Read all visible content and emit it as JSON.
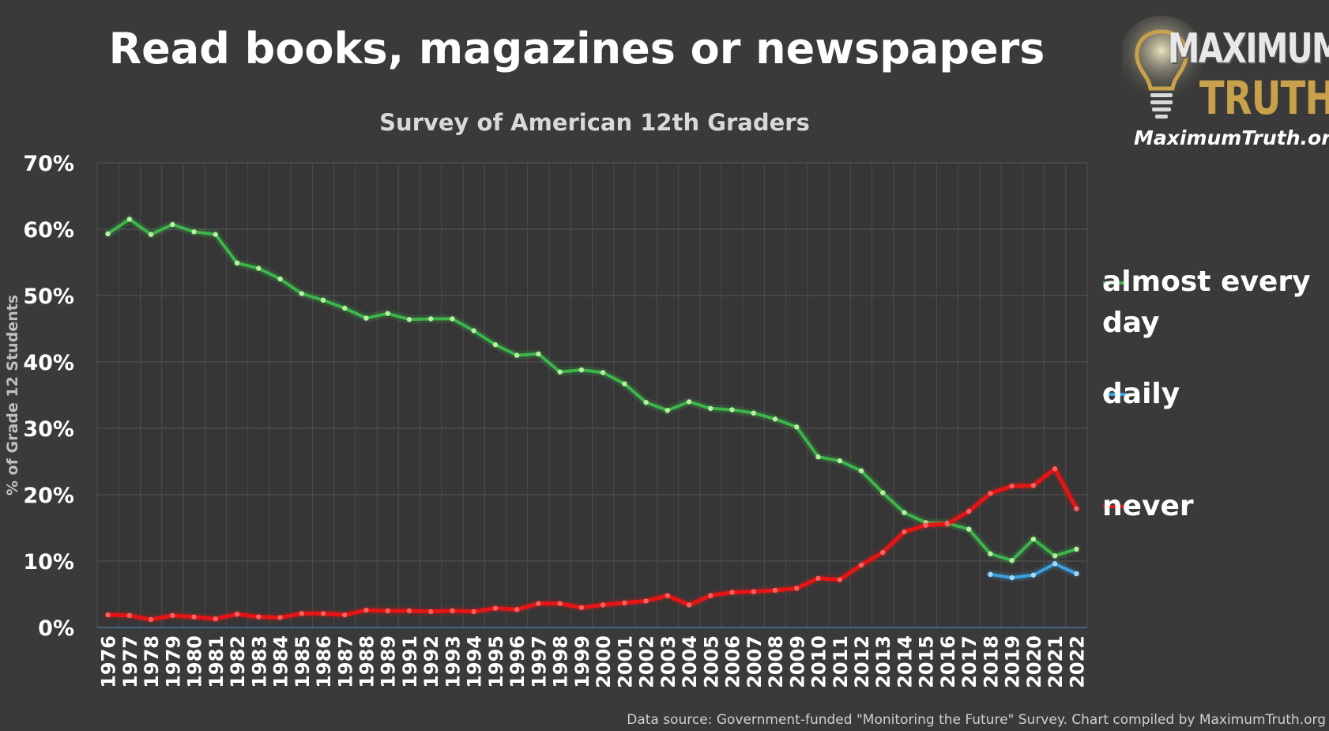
{
  "title": "Read books, magazines or newspapers",
  "subtitle": "Survey of American 12th Graders",
  "logo": {
    "line1": "MAXIMUM",
    "line2": "TRUTH",
    "url": "MaximumTruth.org"
  },
  "source_note": "Data source: Government-funded \"Monitoring the Future\" Survey. Chart compiled by MaximumTruth.org",
  "colors": {
    "background": "#3a3a3a",
    "green": "#3cb54a",
    "blue": "#3aa0e0",
    "red": "#e61414",
    "grid": "#555555"
  },
  "chart_data": {
    "type": "line",
    "title": "Read books, magazines or newspapers",
    "subtitle": "Survey of American 12th Graders",
    "xlabel": "",
    "ylabel": "% of Grade 12 Students",
    "ylim": [
      0,
      70
    ],
    "yticks": [
      "0%",
      "10%",
      "20%",
      "30%",
      "40%",
      "50%",
      "60%",
      "70%"
    ],
    "grid": true,
    "legend_position": "right",
    "categories": [
      "1976",
      "1977",
      "1978",
      "1979",
      "1980",
      "1981",
      "1982",
      "1983",
      "1984",
      "1985",
      "1986",
      "1987",
      "1988",
      "1989",
      "1991",
      "1992",
      "1993",
      "1994",
      "1995",
      "1996",
      "1997",
      "1998",
      "1999",
      "2000",
      "2001",
      "2002",
      "2003",
      "2004",
      "2005",
      "2006",
      "2007",
      "2008",
      "2009",
      "2010",
      "2011",
      "2012",
      "2013",
      "2014",
      "2015",
      "2016",
      "2017",
      "2018",
      "2019",
      "2020",
      "2021",
      "2022"
    ],
    "series": [
      {
        "name": "almost every day",
        "color": "#3cb54a",
        "values": [
          59.3,
          61.5,
          59.2,
          60.7,
          59.6,
          59.2,
          54.9,
          54.1,
          52.5,
          50.3,
          49.3,
          48.1,
          46.6,
          47.3,
          46.4,
          46.5,
          46.5,
          44.7,
          42.6,
          41.0,
          41.2,
          38.5,
          38.8,
          38.4,
          36.7,
          33.9,
          32.7,
          34.0,
          33.0,
          32.8,
          32.3,
          31.4,
          30.2,
          25.7,
          25.1,
          23.6,
          20.3,
          17.3,
          15.8,
          15.7,
          14.8,
          11.1,
          10.1,
          13.3,
          10.8,
          11.8
        ],
        "legend_line1": "almost every",
        "legend_line2": "day"
      },
      {
        "name": "daily",
        "color": "#3aa0e0",
        "values": [
          null,
          null,
          null,
          null,
          null,
          null,
          null,
          null,
          null,
          null,
          null,
          null,
          null,
          null,
          null,
          null,
          null,
          null,
          null,
          null,
          null,
          null,
          null,
          null,
          null,
          null,
          null,
          null,
          null,
          null,
          null,
          null,
          null,
          null,
          null,
          null,
          null,
          null,
          null,
          null,
          null,
          8.0,
          7.5,
          7.9,
          9.6,
          8.1
        ]
      },
      {
        "name": "never",
        "color": "#e61414",
        "values": [
          1.9,
          1.8,
          1.2,
          1.8,
          1.6,
          1.3,
          2.0,
          1.6,
          1.5,
          2.1,
          2.1,
          1.9,
          2.6,
          2.5,
          2.5,
          2.4,
          2.5,
          2.4,
          2.9,
          2.7,
          3.6,
          3.6,
          3.0,
          3.4,
          3.7,
          4.0,
          4.8,
          3.4,
          4.8,
          5.3,
          5.4,
          5.6,
          5.9,
          7.4,
          7.2,
          9.4,
          11.3,
          14.4,
          15.4,
          15.6,
          17.5,
          20.2,
          21.3,
          21.4,
          23.9,
          17.9
        ]
      }
    ]
  }
}
